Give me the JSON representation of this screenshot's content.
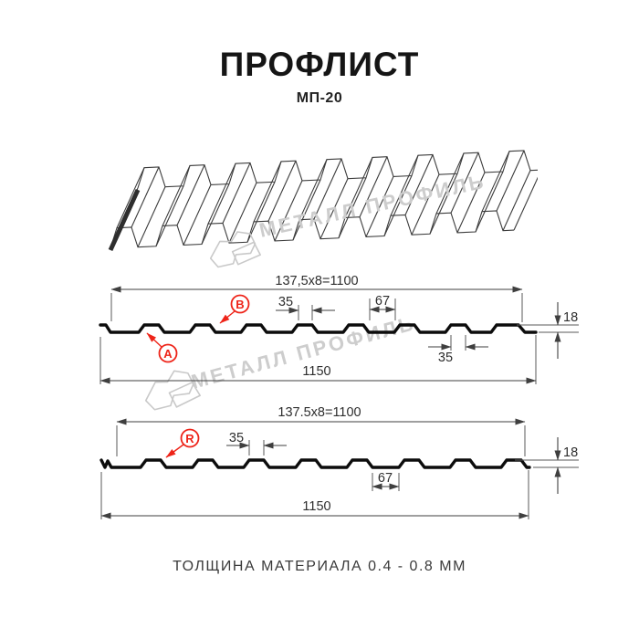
{
  "page": {
    "title": "ПРОФЛИСТ",
    "subtitle": "МП-20",
    "footer_note": "ТОЛЩИНА МАТЕРИАЛА 0.4 - 0.8 ММ"
  },
  "watermark": {
    "brand_text": "МЕТАЛЛ ПРОФИЛЬ"
  },
  "colors": {
    "accent_red": "#ee2419",
    "line_gray": "#3f3f3f",
    "profile_black": "#0c0c0c",
    "watermark_gray": "#cdcdcd"
  },
  "section_top": {
    "coverage_width": "137,5x8=1100",
    "overall_width": "1150",
    "rib_top_width": "35",
    "rib_bottom_width": "35",
    "valley_width": "67",
    "profile_height": "18",
    "marker_a": "A",
    "marker_b": "B"
  },
  "section_bottom": {
    "coverage_width": "137.5x8=1100",
    "overall_width": "1150",
    "rib_top_width": "35",
    "valley_width": "67",
    "profile_height": "18",
    "marker_r": "R"
  }
}
